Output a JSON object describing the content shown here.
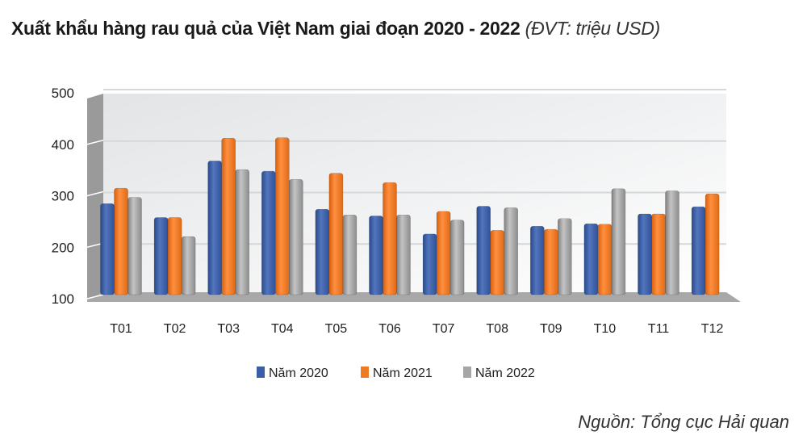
{
  "chart_data": {
    "type": "bar",
    "title": "Xuất khẩu hàng rau quả của Việt Nam giai đoạn 2020 - 2022",
    "subtitle": "(ĐVT: triệu USD)",
    "xlabel": "",
    "ylabel": "",
    "ylim": [
      100,
      500
    ],
    "yticks": [
      100,
      200,
      300,
      400,
      500
    ],
    "grid": true,
    "legend_position": "bottom",
    "categories": [
      "T01",
      "T02",
      "T03",
      "T04",
      "T05",
      "T06",
      "T07",
      "T08",
      "T09",
      "T10",
      "T11",
      "T12"
    ],
    "series": [
      {
        "name": "Năm 2020",
        "color": "#3a5ea8",
        "values": [
          280,
          253,
          363,
          343,
          269,
          256,
          221,
          275,
          236,
          241,
          260,
          274
        ]
      },
      {
        "name": "Năm 2021",
        "color": "#f07a22",
        "values": [
          310,
          253,
          407,
          408,
          339,
          321,
          265,
          228,
          230,
          240,
          260,
          299
        ]
      },
      {
        "name": "Năm 2022",
        "color": "#a6a6a6",
        "values": [
          292,
          216,
          346,
          327,
          258,
          258,
          248,
          272,
          251,
          309,
          305,
          null
        ]
      }
    ],
    "source": "Nguồn: Tổng cục Hải quan"
  }
}
